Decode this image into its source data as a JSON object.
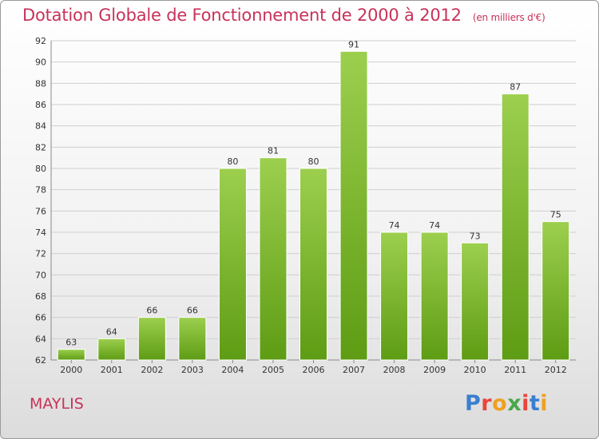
{
  "header": {
    "title": "Dotation Globale de Fonctionnement de 2000 à 2012",
    "subtitle": "(en milliers d'€)"
  },
  "footer": {
    "town": "MAYLIS",
    "logo": "Proxiti"
  },
  "colors": {
    "title": "#c8325a",
    "bar_top": "#9ccf4e",
    "bar_bottom": "#5e9c14",
    "grid": "#cfcfcf",
    "logo_letters": [
      "#3a7fd0",
      "#e8463c",
      "#f0a020",
      "#4aa84a",
      "#e8463c",
      "#3a7fd0",
      "#f0a020"
    ]
  },
  "chart_data": {
    "type": "bar",
    "title": "Dotation Globale de Fonctionnement de 2000 à 2012",
    "subtitle": "(en milliers d'€)",
    "xlabel": "",
    "ylabel": "",
    "categories": [
      "2000",
      "2001",
      "2002",
      "2003",
      "2004",
      "2005",
      "2006",
      "2007",
      "2008",
      "2009",
      "2010",
      "2011",
      "2012"
    ],
    "values": [
      63,
      64,
      66,
      66,
      80,
      81,
      80,
      91,
      74,
      74,
      73,
      87,
      75
    ],
    "ylim": [
      62,
      92
    ],
    "yticks": [
      62,
      64,
      66,
      68,
      70,
      72,
      74,
      76,
      78,
      80,
      82,
      84,
      86,
      88,
      90,
      92
    ],
    "grid": true,
    "legend": "none"
  }
}
